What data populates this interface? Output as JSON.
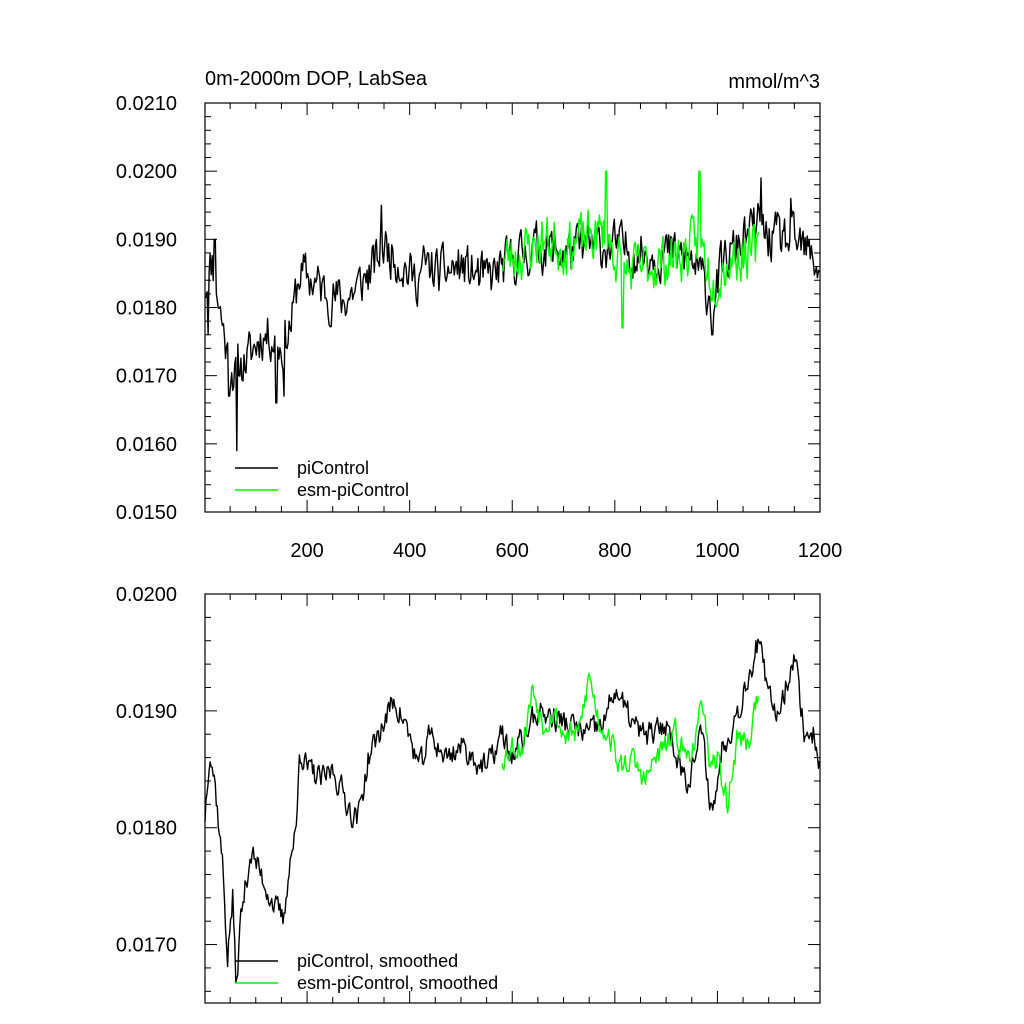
{
  "chart_data": [
    {
      "type": "line",
      "title": "0m-2000m DOP, LabSea",
      "units": "mmol/m^3",
      "xlim": [
        1,
        1200
      ],
      "ylim": [
        0.015,
        0.021
      ],
      "x_ticks": [
        200,
        400,
        600,
        800,
        1000,
        1200
      ],
      "x_tick_labels": [
        "200",
        "400",
        "600",
        "800",
        "1000",
        "1200"
      ],
      "y_ticks": [
        0.015,
        0.016,
        0.017,
        0.018,
        0.019,
        0.02,
        0.021
      ],
      "y_tick_labels": [
        "0.0150",
        "0.0160",
        "0.0170",
        "0.0180",
        "0.0190",
        "0.0200",
        "0.0210"
      ],
      "legend": [
        "piControl",
        "esm-piControl"
      ],
      "legend_position": "bottom-left",
      "series": [
        {
          "name": "piControl",
          "color": "#000000",
          "x_start": 1,
          "x_end": 1200,
          "anchors": [
            [
              1,
              0.0183
            ],
            [
              15,
              0.0187
            ],
            [
              30,
              0.018
            ],
            [
              45,
              0.0173
            ],
            [
              60,
              0.017
            ],
            [
              75,
              0.0172
            ],
            [
              90,
              0.0173
            ],
            [
              110,
              0.0176
            ],
            [
              130,
              0.0176
            ],
            [
              150,
              0.0174
            ],
            [
              170,
              0.0178
            ],
            [
              185,
              0.0185
            ],
            [
              210,
              0.0184
            ],
            [
              240,
              0.0182
            ],
            [
              270,
              0.0181
            ],
            [
              300,
              0.0183
            ],
            [
              330,
              0.0186
            ],
            [
              350,
              0.0189
            ],
            [
              380,
              0.0187
            ],
            [
              410,
              0.0184
            ],
            [
              430,
              0.0186
            ],
            [
              460,
              0.0185
            ],
            [
              500,
              0.0186
            ],
            [
              550,
              0.0184
            ],
            [
              600,
              0.0187
            ],
            [
              650,
              0.0189
            ],
            [
              700,
              0.0188
            ],
            [
              750,
              0.0189
            ],
            [
              800,
              0.0189
            ],
            [
              850,
              0.0188
            ],
            [
              900,
              0.0188
            ],
            [
              950,
              0.0187
            ],
            [
              990,
              0.0181
            ],
            [
              1010,
              0.0186
            ],
            [
              1050,
              0.019
            ],
            [
              1080,
              0.0192
            ],
            [
              1100,
              0.019
            ],
            [
              1130,
              0.019
            ],
            [
              1160,
              0.0189
            ],
            [
              1200,
              0.0186
            ]
          ],
          "spikes": [
            [
              7,
              0.0176
            ],
            [
              20,
              0.019
            ],
            [
              48,
              0.0167
            ],
            [
              63,
              0.0159
            ],
            [
              140,
              0.0166
            ],
            [
              155,
              0.0167
            ],
            [
              345,
              0.0195
            ],
            [
              1085,
              0.0199
            ],
            [
              1143,
              0.0196
            ],
            [
              990,
              0.0176
            ]
          ],
          "noise": 0.00055,
          "seed": 11
        },
        {
          "name": "esm-piControl",
          "color": "#00ff00",
          "x_start": 580,
          "x_end": 1080,
          "anchors": [
            [
              580,
              0.0187
            ],
            [
              620,
              0.0188
            ],
            [
              660,
              0.019
            ],
            [
              700,
              0.0189
            ],
            [
              740,
              0.019
            ],
            [
              780,
              0.0191
            ],
            [
              820,
              0.0185
            ],
            [
              860,
              0.0186
            ],
            [
              900,
              0.0187
            ],
            [
              940,
              0.0188
            ],
            [
              965,
              0.019
            ],
            [
              990,
              0.0184
            ],
            [
              1020,
              0.0187
            ],
            [
              1050,
              0.0188
            ],
            [
              1080,
              0.0188
            ]
          ],
          "spikes": [
            [
              783,
              0.02
            ],
            [
              965,
              0.02
            ],
            [
              815,
              0.0177
            ],
            [
              990,
              0.0181
            ]
          ],
          "noise": 0.0006,
          "seed": 23
        }
      ]
    },
    {
      "type": "line",
      "title": "",
      "xlim": [
        1,
        1200
      ],
      "ylim": [
        0.0165,
        0.02
      ],
      "x_ticks": [
        200,
        400,
        600,
        800,
        1000,
        1200
      ],
      "y_ticks": [
        0.017,
        0.018,
        0.019,
        0.02
      ],
      "y_tick_labels": [
        "0.0170",
        "0.0180",
        "0.0190",
        "0.0200"
      ],
      "legend": [
        "piControl, smoothed",
        "esm-piControl, smoothed"
      ],
      "legend_position": "bottom-left",
      "series": [
        {
          "name": "piControl, smoothed",
          "color": "#000000",
          "x_start": 1,
          "x_end": 1200,
          "anchors": [
            [
              1,
              0.0181
            ],
            [
              10,
              0.0187
            ],
            [
              20,
              0.0184
            ],
            [
              35,
              0.0177
            ],
            [
              45,
              0.0169
            ],
            [
              55,
              0.0174
            ],
            [
              62,
              0.0166
            ],
            [
              70,
              0.0172
            ],
            [
              90,
              0.0178
            ],
            [
              110,
              0.0176
            ],
            [
              140,
              0.0173
            ],
            [
              155,
              0.0172
            ],
            [
              165,
              0.0177
            ],
            [
              180,
              0.018
            ],
            [
              185,
              0.0187
            ],
            [
              200,
              0.0185
            ],
            [
              230,
              0.0184
            ],
            [
              250,
              0.0185
            ],
            [
              270,
              0.0183
            ],
            [
              290,
              0.0181
            ],
            [
              300,
              0.0181
            ],
            [
              320,
              0.0186
            ],
            [
              350,
              0.0189
            ],
            [
              370,
              0.0191
            ],
            [
              390,
              0.0189
            ],
            [
              420,
              0.0185
            ],
            [
              440,
              0.0188
            ],
            [
              470,
              0.0186
            ],
            [
              500,
              0.0187
            ],
            [
              550,
              0.0185
            ],
            [
              580,
              0.0188
            ],
            [
              600,
              0.0186
            ],
            [
              650,
              0.019
            ],
            [
              700,
              0.0189
            ],
            [
              750,
              0.0188
            ],
            [
              780,
              0.0189
            ],
            [
              800,
              0.0192
            ],
            [
              820,
              0.019
            ],
            [
              850,
              0.0188
            ],
            [
              880,
              0.0188
            ],
            [
              900,
              0.0189
            ],
            [
              940,
              0.0184
            ],
            [
              970,
              0.0188
            ],
            [
              990,
              0.0181
            ],
            [
              1010,
              0.0187
            ],
            [
              1040,
              0.019
            ],
            [
              1080,
              0.0196
            ],
            [
              1100,
              0.0191
            ],
            [
              1120,
              0.019
            ],
            [
              1150,
              0.0195
            ],
            [
              1170,
              0.0188
            ],
            [
              1190,
              0.0188
            ],
            [
              1200,
              0.0185
            ]
          ],
          "noise": 0.00018,
          "seed": 37
        },
        {
          "name": "esm-piControl, smoothed",
          "color": "#00ff00",
          "x_start": 580,
          "x_end": 1080,
          "anchors": [
            [
              580,
              0.0186
            ],
            [
              600,
              0.0187
            ],
            [
              620,
              0.0187
            ],
            [
              640,
              0.0192
            ],
            [
              660,
              0.0189
            ],
            [
              680,
              0.019
            ],
            [
              700,
              0.0188
            ],
            [
              730,
              0.0188
            ],
            [
              750,
              0.0193
            ],
            [
              770,
              0.0189
            ],
            [
              790,
              0.0188
            ],
            [
              810,
              0.0185
            ],
            [
              830,
              0.0186
            ],
            [
              860,
              0.0184
            ],
            [
              880,
              0.0186
            ],
            [
              900,
              0.0187
            ],
            [
              920,
              0.0188
            ],
            [
              940,
              0.0186
            ],
            [
              960,
              0.0188
            ],
            [
              975,
              0.0191
            ],
            [
              985,
              0.0184
            ],
            [
              1000,
              0.0186
            ],
            [
              1020,
              0.0182
            ],
            [
              1040,
              0.0188
            ],
            [
              1060,
              0.0187
            ],
            [
              1080,
              0.0192
            ]
          ],
          "noise": 0.00018,
          "seed": 53
        }
      ]
    }
  ]
}
